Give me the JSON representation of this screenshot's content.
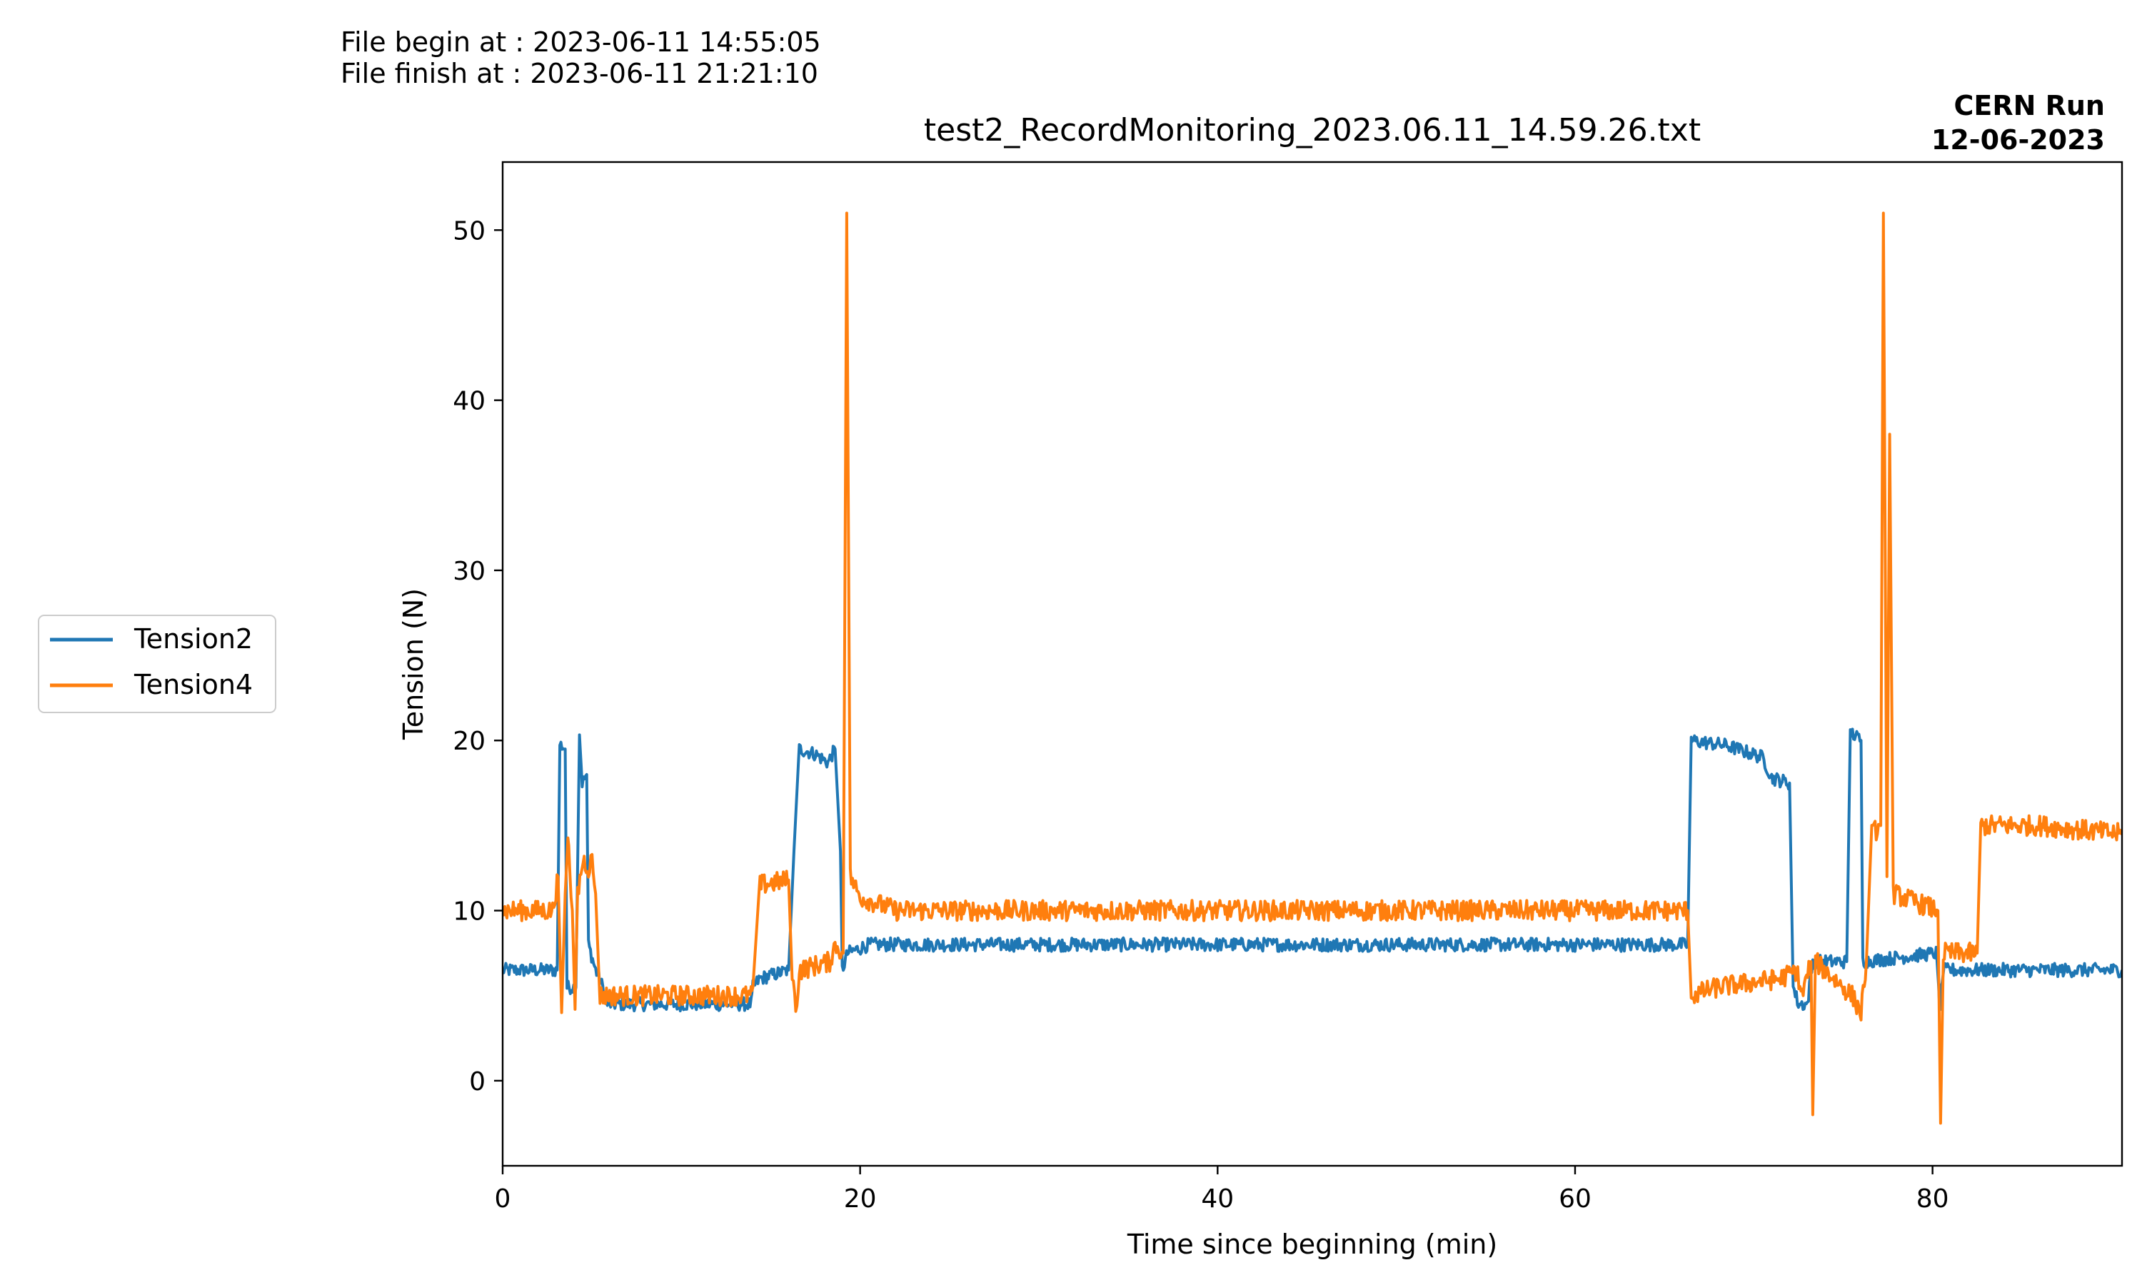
{
  "header": {
    "begin": "File begin at : 2023-06-11 14:55:05",
    "finish": "File finish at : 2023-06-11 21:21:10",
    "run_line1": "CERN Run",
    "run_line2": "12-06-2023"
  },
  "chart_data": {
    "type": "line",
    "title": "test2_RecordMonitoring_2023.06.11_14.59.26.txt",
    "xlabel": "Time since beginning (min)",
    "ylabel": "Tension (N)",
    "xlim": [
      0,
      90.6
    ],
    "ylim": [
      -5,
      54
    ],
    "xticks": [
      0,
      20,
      40,
      60,
      80
    ],
    "yticks": [
      0,
      10,
      20,
      30,
      40,
      50
    ],
    "grid": false,
    "legend_position": "left-outside",
    "series": [
      {
        "name": "Tension2",
        "color": "#1f77b4",
        "noise": 0.4,
        "points": [
          [
            0,
            6.5
          ],
          [
            3.05,
            6.5
          ],
          [
            3.2,
            19.8
          ],
          [
            3.5,
            19.5
          ],
          [
            3.6,
            5.5
          ],
          [
            4.1,
            5.5
          ],
          [
            4.3,
            20.5
          ],
          [
            4.45,
            17.5
          ],
          [
            4.7,
            18
          ],
          [
            4.8,
            8
          ],
          [
            5.2,
            6.5
          ],
          [
            5.6,
            5.5
          ],
          [
            5.8,
            4.5
          ],
          [
            13.9,
            4.5
          ],
          [
            14.0,
            5.5
          ],
          [
            14.4,
            6.0
          ],
          [
            16.0,
            6.5
          ],
          [
            16.3,
            13.5
          ],
          [
            16.6,
            19.5
          ],
          [
            17.5,
            19.2
          ],
          [
            18.2,
            18.7
          ],
          [
            18.6,
            19.5
          ],
          [
            18.9,
            13.5
          ],
          [
            19.0,
            6.5
          ],
          [
            19.3,
            7.5
          ],
          [
            20.5,
            8.0
          ],
          [
            66.3,
            8.0
          ],
          [
            66.5,
            20.0
          ],
          [
            68.5,
            19.7
          ],
          [
            70.5,
            19.0
          ],
          [
            71.0,
            17.8
          ],
          [
            72.0,
            17.5
          ],
          [
            72.2,
            5.5
          ],
          [
            72.5,
            4.5
          ],
          [
            73.0,
            4.5
          ],
          [
            73.3,
            7.0
          ],
          [
            75.2,
            7.0
          ],
          [
            75.4,
            20.5
          ],
          [
            76.0,
            20.0
          ],
          [
            76.1,
            7.0
          ],
          [
            80.2,
            7.5
          ],
          [
            80.4,
            4.5
          ],
          [
            80.6,
            6.5
          ],
          [
            90.6,
            6.5
          ]
        ]
      },
      {
        "name": "Tension4",
        "color": "#ff7f0e",
        "noise": 0.6,
        "points": [
          [
            0,
            10.0
          ],
          [
            2.8,
            10.0
          ],
          [
            3.1,
            12
          ],
          [
            3.3,
            4.0
          ],
          [
            3.5,
            11
          ],
          [
            3.65,
            14.5
          ],
          [
            3.75,
            12
          ],
          [
            3.9,
            10
          ],
          [
            4.05,
            4.2
          ],
          [
            4.2,
            11
          ],
          [
            4.5,
            13
          ],
          [
            4.8,
            12.5
          ],
          [
            5.0,
            13
          ],
          [
            5.2,
            11
          ],
          [
            5.45,
            5.0
          ],
          [
            13.9,
            5.0
          ],
          [
            14.0,
            5.5
          ],
          [
            14.4,
            11.5
          ],
          [
            16.0,
            11.8
          ],
          [
            16.2,
            6.5
          ],
          [
            16.4,
            4.0
          ],
          [
            16.6,
            6.5
          ],
          [
            18.3,
            7.0
          ],
          [
            18.6,
            8.0
          ],
          [
            19.05,
            7.5
          ],
          [
            19.25,
            51.0
          ],
          [
            19.45,
            12.0
          ],
          [
            20.0,
            10.8
          ],
          [
            22.0,
            10.0
          ],
          [
            66.3,
            10.0
          ],
          [
            66.5,
            5.0
          ],
          [
            68.0,
            5.5
          ],
          [
            71.5,
            6.0
          ],
          [
            72.4,
            6.5
          ],
          [
            72.7,
            5.0
          ],
          [
            73.2,
            7.0
          ],
          [
            73.3,
            -2.0
          ],
          [
            73.45,
            7.0
          ],
          [
            75.5,
            5.0
          ],
          [
            76.0,
            4.0
          ],
          [
            76.3,
            7.0
          ],
          [
            76.6,
            14.5
          ],
          [
            77.1,
            15.0
          ],
          [
            77.25,
            51.0
          ],
          [
            77.45,
            12.0
          ],
          [
            77.6,
            38.0
          ],
          [
            77.8,
            11.0
          ],
          [
            80.3,
            10.0
          ],
          [
            80.45,
            -2.5
          ],
          [
            80.6,
            7.5
          ],
          [
            82.5,
            7.5
          ],
          [
            82.7,
            15.0
          ],
          [
            86.0,
            15.0
          ],
          [
            90.6,
            14.5
          ]
        ]
      }
    ]
  }
}
